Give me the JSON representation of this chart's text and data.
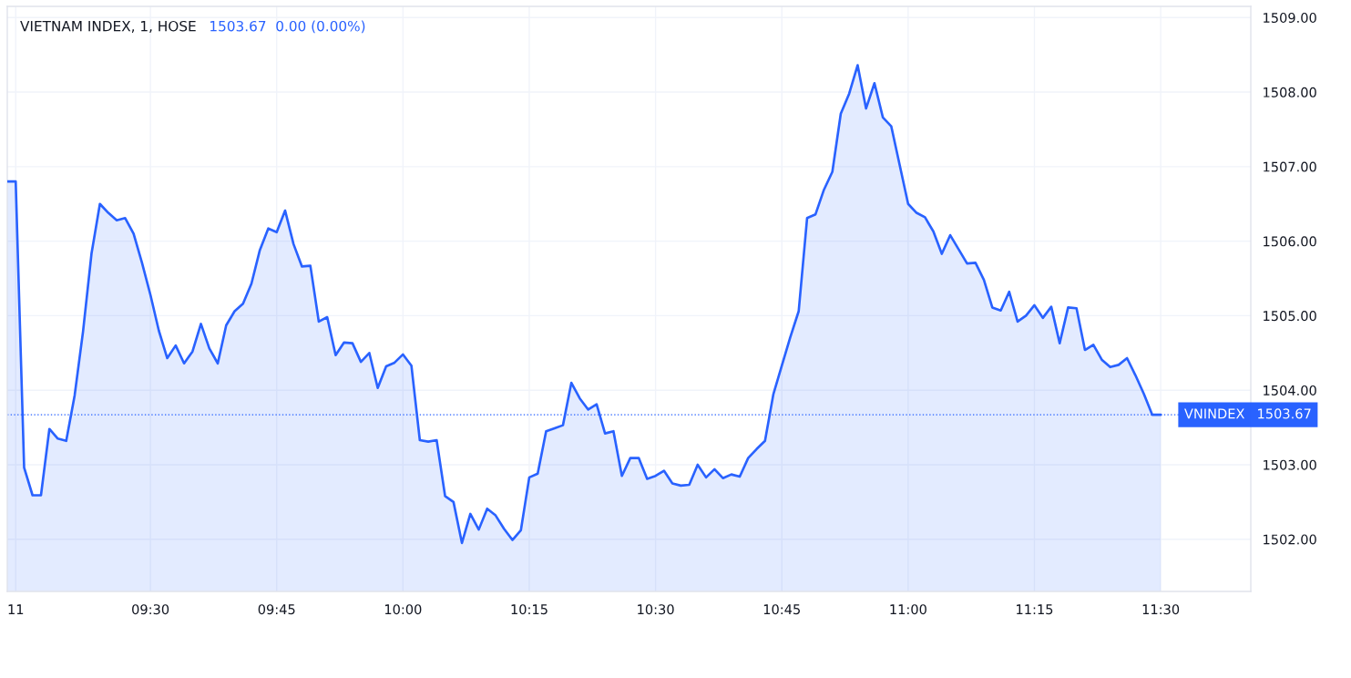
{
  "chart_data": {
    "type": "area",
    "title": "VIETNAM INDEX, 1, HOSE",
    "subtitle": "1503.67  0.00 (0.00%)",
    "categories": [
      null,
      "11",
      null,
      null,
      null,
      null,
      null,
      null,
      null,
      null,
      null,
      null,
      null,
      null,
      null,
      null,
      null,
      "09:30",
      null,
      null,
      null,
      null,
      null,
      null,
      null,
      null,
      null,
      null,
      null,
      null,
      null,
      null,
      "09:45",
      null,
      null,
      null,
      null,
      null,
      null,
      null,
      null,
      null,
      null,
      null,
      null,
      null,
      null,
      "10:00",
      null,
      null,
      null,
      null,
      null,
      null,
      null,
      null,
      null,
      null,
      null,
      null,
      null,
      null,
      "10:15",
      null,
      null,
      null,
      null,
      null,
      null,
      null,
      null,
      null,
      null,
      null,
      null,
      null,
      null,
      "10:30",
      null,
      null,
      null,
      null,
      null,
      null,
      null,
      null,
      null,
      null,
      null,
      null,
      null,
      null,
      "10:45",
      null,
      null,
      null,
      null,
      null,
      null,
      null,
      null,
      null,
      null,
      null,
      null,
      null,
      null,
      "11:00",
      null,
      null,
      null,
      null,
      null,
      null,
      null,
      null,
      null,
      null,
      null,
      null,
      null,
      null,
      "11:15",
      null,
      null,
      null,
      null,
      null,
      null,
      null,
      null,
      null,
      null,
      null,
      null,
      null,
      null,
      "11:30"
    ],
    "series": [
      {
        "color": "#2962ff",
        "values": [
          1506.8,
          1506.8,
          1502.96,
          1502.59,
          1502.59,
          1503.48,
          1503.35,
          1503.32,
          1503.93,
          1504.79,
          1505.83,
          1506.5,
          1506.38,
          1506.28,
          1506.31,
          1506.1,
          1505.71,
          1505.28,
          1504.8,
          1504.43,
          1504.6,
          1504.36,
          1504.52,
          1504.89,
          1504.56,
          1504.36,
          1504.87,
          1505.06,
          1505.16,
          1505.43,
          1505.88,
          1506.17,
          1506.12,
          1506.41,
          1505.96,
          1505.66,
          1505.67,
          1504.92,
          1504.98,
          1504.47,
          1504.64,
          1504.63,
          1504.38,
          1504.5,
          1504.03,
          1504.32,
          1504.37,
          1504.48,
          1504.33,
          1503.33,
          1503.31,
          1503.33,
          1502.58,
          1502.5,
          1501.95,
          1502.34,
          1502.13,
          1502.41,
          1502.32,
          1502.14,
          1501.99,
          1502.12,
          1502.83,
          1502.88,
          1503.45,
          1503.49,
          1503.53,
          1504.1,
          1503.89,
          1503.74,
          1503.81,
          1503.42,
          1503.45,
          1502.85,
          1503.09,
          1503.09,
          1502.81,
          1502.85,
          1502.92,
          1502.75,
          1502.72,
          1502.73,
          1503.0,
          1502.83,
          1502.94,
          1502.82,
          1502.87,
          1502.84,
          1503.09,
          1503.21,
          1503.32,
          1503.95,
          1504.33,
          1504.71,
          1505.06,
          1506.31,
          1506.36,
          1506.69,
          1506.93,
          1507.71,
          1507.98,
          1508.36,
          1507.78,
          1508.12,
          1507.66,
          1507.54,
          1507.02,
          1506.5,
          1506.38,
          1506.32,
          1506.13,
          1505.83,
          1506.08,
          1505.89,
          1505.7,
          1505.71,
          1505.48,
          1505.11,
          1505.07,
          1505.32,
          1504.92,
          1505.0,
          1505.14,
          1504.97,
          1505.12,
          1504.63,
          1505.11,
          1505.1,
          1504.54,
          1504.61,
          1504.41,
          1504.31,
          1504.34,
          1504.43,
          1504.2,
          1503.95,
          1503.67,
          1503.67
        ]
      }
    ],
    "ylim": [
      1501.3,
      1509.15
    ],
    "yticks": [
      {
        "value": 1502,
        "label": "1502.00"
      },
      {
        "value": 1503,
        "label": "1503.00"
      },
      {
        "value": 1504,
        "label": "1504.00"
      },
      {
        "value": 1505,
        "label": "1505.00"
      },
      {
        "value": 1506,
        "label": "1506.00"
      },
      {
        "value": 1507,
        "label": "1507.00"
      },
      {
        "value": 1508,
        "label": "1508.00"
      },
      {
        "value": 1509,
        "label": "1509.00"
      }
    ],
    "grid": true,
    "ref_lines": [
      {
        "axis": "y",
        "value": 1503.67,
        "label": "VNINDEX",
        "color": "#2962ff",
        "line_style": "dotted"
      }
    ],
    "annotations": [
      "1503.67"
    ]
  }
}
